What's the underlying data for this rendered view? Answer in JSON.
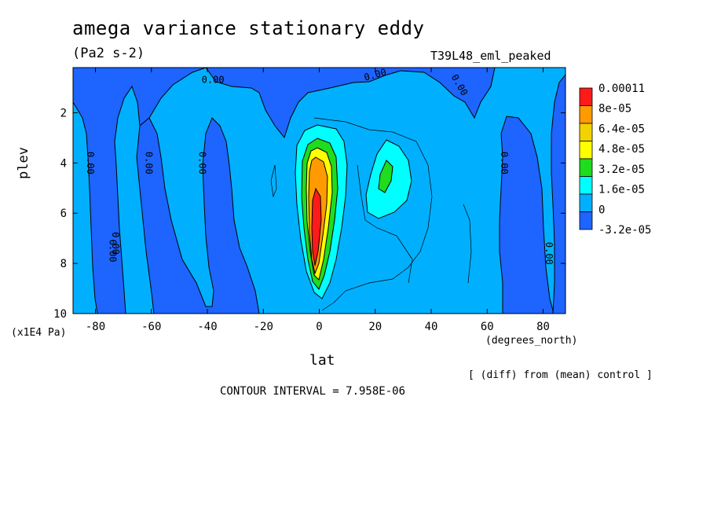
{
  "header": {
    "title": "amega variance stationary eddy",
    "units": "(Pa2 s-2)",
    "run_name": "T39L48_eml_peaked"
  },
  "footer": {
    "diff_note": "[ (diff) from (mean) control ]",
    "contour_interval": "CONTOUR INTERVAL = 7.958E-06"
  },
  "chart_data": {
    "type": "heatmap",
    "title": "amega variance stationary eddy",
    "subtitle": "(Pa2 s-2)",
    "xlabel": "lat",
    "xunits": "(degrees_north)",
    "ylabel": "plev",
    "yunits": "(x1E4 Pa)",
    "xlim": [
      -88,
      88
    ],
    "ylim": [
      0.2,
      10
    ],
    "y_inverted": true,
    "xticks": [
      -80,
      -60,
      -40,
      -20,
      0,
      20,
      40,
      60,
      80
    ],
    "xtick_labels": [
      "-80",
      "-60",
      "-40",
      "-20",
      "0",
      "20",
      "40",
      "60",
      "80"
    ],
    "yticks": [
      2,
      4,
      6,
      8,
      10
    ],
    "ytick_labels": [
      "2",
      "4",
      "6",
      "8",
      "10"
    ],
    "colorbar": {
      "labels": [
        "0.00011",
        "8e-05",
        "6.4e-05",
        "4.8e-05",
        "3.2e-05",
        "1.6e-05",
        "0",
        "-3.2e-05"
      ],
      "colors": [
        "#ff1a1a",
        "#ff9a00",
        "#f2d200",
        "#ffff00",
        "#1fdc1f",
        "#00ffff",
        "#00b0ff",
        "#1e64ff"
      ]
    },
    "contour_labels": [
      {
        "text": "0.00",
        "lat": -38,
        "plev": 0.7,
        "rot": 0
      },
      {
        "text": "0.00",
        "lat": 20,
        "plev": 0.5,
        "rot": -15
      },
      {
        "text": "0.00",
        "lat": 50,
        "plev": 0.9,
        "rot": 60
      },
      {
        "text": "0.00",
        "lat": -82,
        "plev": 4.0,
        "rot": 90
      },
      {
        "text": "0.00",
        "lat": -61,
        "plev": 4.0,
        "rot": 90
      },
      {
        "text": "0.00",
        "lat": -42,
        "plev": 4.0,
        "rot": 90
      },
      {
        "text": "0.00",
        "lat": 66,
        "plev": 4.0,
        "rot": 90
      },
      {
        "text": "0.00",
        "lat": -73,
        "plev": 7.2,
        "rot": 90
      },
      {
        "text": "0.00",
        "lat": -74,
        "plev": 7.5,
        "rot": 90
      },
      {
        "text": "0.00",
        "lat": 82,
        "plev": 7.6,
        "rot": 90
      }
    ],
    "features": [
      {
        "name": "equatorial maximum",
        "lat": 0,
        "plev": 6.0,
        "max_value": 0.00011
      },
      {
        "name": "secondary maximum",
        "lat": 23,
        "plev": 4.5,
        "max_value": 3.2e-05
      }
    ],
    "contour_interval": 7.958e-06
  }
}
